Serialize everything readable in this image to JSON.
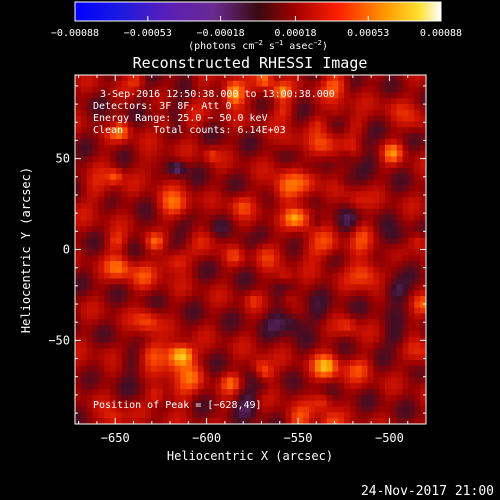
{
  "chart_data": {
    "type": "heatmap",
    "title": "Reconstructed RHESSI Image",
    "xlabel": "Heliocentric X (arcsec)",
    "ylabel": "Heliocentric Y (arcsec)",
    "xlim": [
      -672,
      -480
    ],
    "ylim": [
      -96,
      96
    ],
    "x_ticks": [
      -650,
      -600,
      -550,
      -500
    ],
    "y_ticks": [
      -50,
      0,
      50
    ],
    "x_tick_labels": [
      "−650",
      "−600",
      "−550",
      "−500"
    ],
    "y_tick_labels": [
      "−50",
      "0",
      "50"
    ],
    "colorbar": {
      "range": [
        -0.00088,
        0.00088
      ],
      "ticks": [
        -0.00088,
        -0.00053,
        -0.00018,
        0.00018,
        0.00053,
        0.00088
      ],
      "tick_labels": [
        "−0.00088",
        "−0.00053",
        "−0.00018",
        "0.00018",
        "0.00053",
        "0.00088"
      ],
      "units_prefix": "(photons cm",
      "units_exp1": "−2",
      "units_mid1": " s",
      "units_exp2": "−1",
      "units_mid2": " asec",
      "units_exp3": "−2",
      "units_suffix": ")"
    },
    "annotations": {
      "time_range": "3-Sep-2016 12:50:38.000 to 13:00:38.000",
      "detectors": "Detectors: 3F 8F, Att 0",
      "energy_range": "Energy Range: 25.0 − 50.0 keV",
      "method": "Clean     Total counts: 6.14E+03",
      "peak": "Position of Peak = [−628,49]"
    },
    "peak_position": [
      -628,
      49
    ],
    "timestamp": "24-Nov-2017 21:00"
  }
}
